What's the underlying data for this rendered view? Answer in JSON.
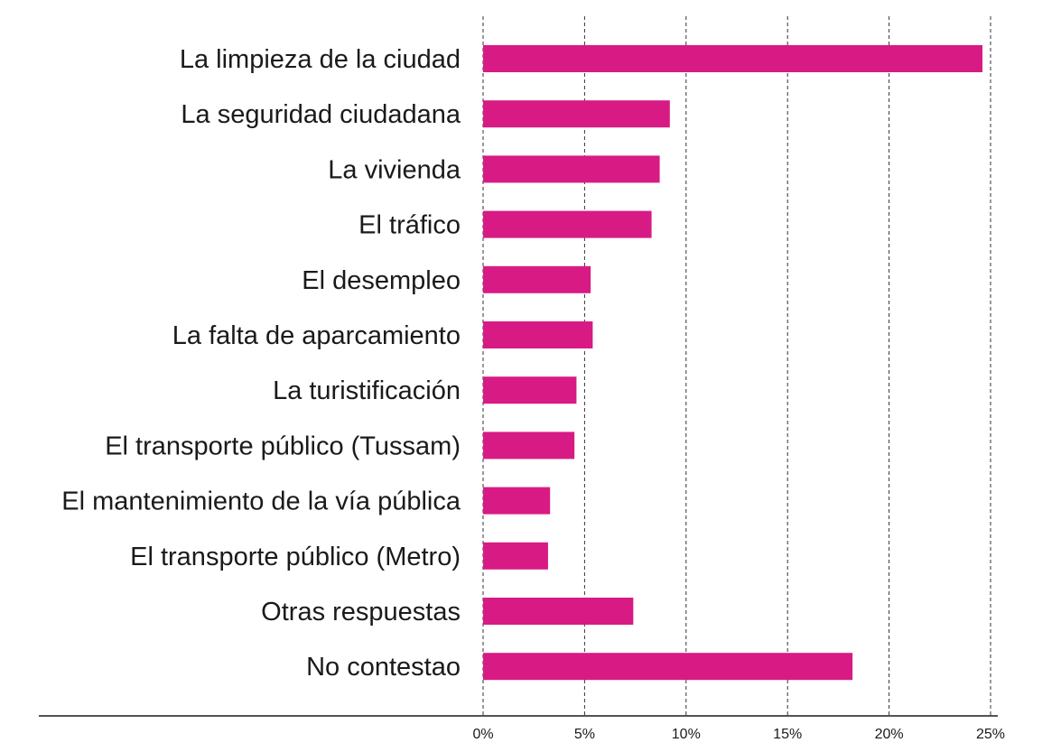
{
  "chart_data": {
    "type": "bar",
    "orientation": "horizontal",
    "categories": [
      "La limpieza de la ciudad",
      "La seguridad ciudadana",
      "La vivienda",
      "El tráfico",
      "El desempleo",
      "La falta de aparcamiento",
      "La turistificación",
      "El transporte público (Tussam)",
      "El mantenimiento de la vía pública",
      "El transporte público (Metro)",
      "Otras respuestas",
      "No contestao"
    ],
    "values": [
      24.6,
      9.2,
      8.7,
      8.3,
      5.3,
      5.4,
      4.6,
      4.5,
      3.3,
      3.2,
      7.4,
      18.2
    ],
    "xlim": [
      0,
      25
    ],
    "xticks": [
      0,
      5,
      10,
      15,
      20,
      25
    ],
    "tick_labels": [
      "0%",
      "5%",
      "10%",
      "15%",
      "20%",
      "25%"
    ],
    "title": "",
    "xlabel": "",
    "ylabel": "",
    "grid": "vertical dashed",
    "legend": "none",
    "bar_color": "#d81b84"
  }
}
